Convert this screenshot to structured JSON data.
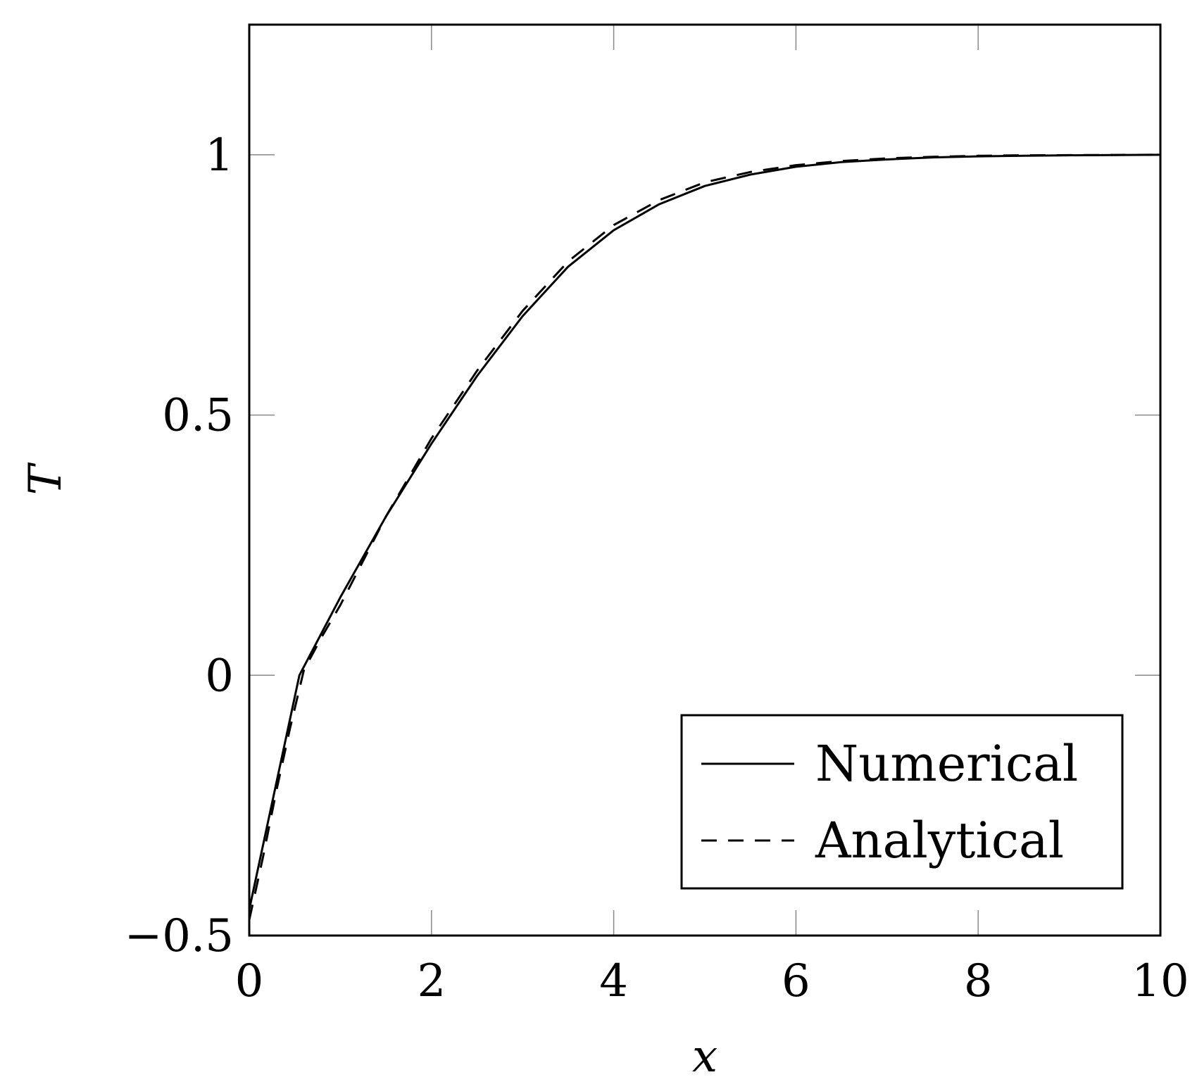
{
  "chart_data": {
    "type": "line",
    "xlabel": "x",
    "ylabel": "T",
    "xlim": [
      0,
      10
    ],
    "ylim": [
      -0.5,
      1.25
    ],
    "xticks": [
      0,
      2,
      4,
      6,
      8,
      10
    ],
    "yticks": [
      -0.5,
      0,
      0.5,
      1
    ],
    "xtick_labels": [
      "0",
      "2",
      "4",
      "6",
      "8",
      "10"
    ],
    "ytick_labels": [
      "−0.5",
      "0",
      "0.5",
      "1"
    ],
    "grid": false,
    "legend_position": "bottom-right",
    "series": [
      {
        "name": "Numerical",
        "style": "solid",
        "color": "#000000",
        "x": [
          0,
          0.55,
          1.0,
          1.5,
          2.0,
          2.5,
          3.0,
          3.5,
          4.0,
          4.5,
          5.0,
          5.5,
          6.0,
          6.5,
          7.0,
          7.5,
          8.0,
          8.5,
          9.0,
          9.5,
          10.0
        ],
        "y": [
          -0.45,
          0.0,
          0.15,
          0.305,
          0.445,
          0.575,
          0.69,
          0.785,
          0.855,
          0.905,
          0.94,
          0.962,
          0.977,
          0.986,
          0.991,
          0.995,
          0.997,
          0.998,
          0.999,
          0.9995,
          1.0
        ]
      },
      {
        "name": "Analytical",
        "style": "dashed",
        "color": "#000000",
        "x": [
          0,
          0.15,
          0.3,
          0.45,
          0.6,
          0.8,
          1.0,
          1.5,
          2.0,
          2.5,
          3.0,
          3.5,
          4.0,
          4.5,
          5.0,
          5.5,
          6.0,
          6.5,
          7.0,
          7.5,
          8.0,
          8.5,
          9.0,
          9.5,
          10.0
        ],
        "y": [
          -0.47,
          -0.35,
          -0.22,
          -0.1,
          0.01,
          0.075,
          0.135,
          0.305,
          0.455,
          0.585,
          0.7,
          0.795,
          0.865,
          0.913,
          0.947,
          0.967,
          0.98,
          0.988,
          0.993,
          0.996,
          0.998,
          0.999,
          0.9993,
          0.9997,
          1.0
        ]
      }
    ]
  }
}
